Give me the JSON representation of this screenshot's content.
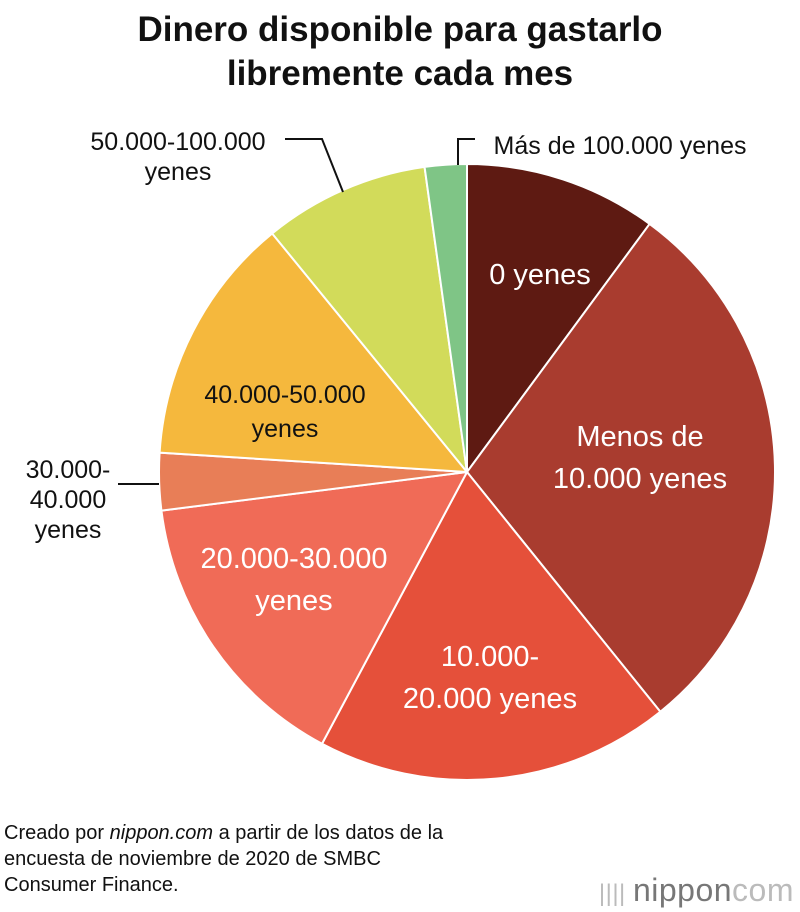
{
  "chart_data": {
    "type": "pie",
    "title_lines": [
      "Dinero disponible para gastarlo",
      "libremente cada mes"
    ],
    "unit": "percent (estimated)",
    "slices": [
      {
        "label": [
          "0 yenes"
        ],
        "value": 10.1,
        "color": "#5e1a12",
        "text_color": "#ffffff"
      },
      {
        "label": [
          "Menos de",
          "10.000 yenes"
        ],
        "value": 29.1,
        "color": "#a93c2f",
        "text_color": "#ffffff"
      },
      {
        "label": [
          "10.000-",
          "20.000 yenes"
        ],
        "value": 18.6,
        "color": "#e5503a",
        "text_color": "#ffffff"
      },
      {
        "label": [
          "20.000-30.000",
          "yenes"
        ],
        "value": 15.2,
        "color": "#f06b57",
        "text_color": "#ffffff"
      },
      {
        "label": [
          "30.000-",
          "40.000",
          "yenes"
        ],
        "value": 3.0,
        "color": "#e87e57",
        "text_color": "#111111"
      },
      {
        "label": [
          "40.000-50.000",
          "yenes"
        ],
        "value": 13.1,
        "color": "#f5b83d",
        "text_color": "#111111"
      },
      {
        "label": [
          "50.000-100.000",
          "yenes"
        ],
        "value": 8.7,
        "color": "#d2db5a",
        "text_color": "#111111"
      },
      {
        "label": [
          "Más de 100.000 yenes"
        ],
        "value": 2.2,
        "color": "#7fc586",
        "text_color": "#111111"
      }
    ]
  },
  "source": [
    "Creado por ",
    "nippon.com",
    " a partir de los datos de la",
    "encuesta de noviembre de 2020 de SMBC",
    "Consumer Finance."
  ],
  "logo": {
    "main": "nippon",
    ".": ".",
    "com": "com"
  }
}
